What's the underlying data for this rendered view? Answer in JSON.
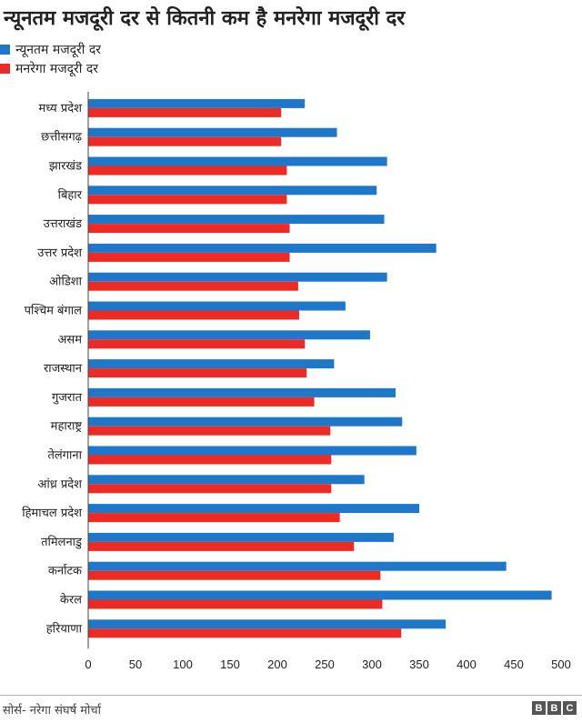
{
  "header": {
    "title": "न्यूनतम मजदूरी दर से कितनी कम है मनरेगा मजदूरी दर"
  },
  "footer": {
    "source": "सोर्स- नरेगा संघर्ष मोर्चा",
    "logo_letters": [
      "B",
      "B",
      "C"
    ]
  },
  "colors": {
    "minimum_wage": "#1f77c9",
    "mnrega_wage": "#ee2a24"
  },
  "chart_data": {
    "type": "bar",
    "orientation": "horizontal",
    "categories": [
      "मध्य प्रदेश",
      "छत्तीसगढ़",
      "झारखंड",
      "बिहार",
      "उत्तराखंड",
      "उत्तर प्रदेश",
      "ओडिशा",
      "पश्चिम बंगाल",
      "असम",
      "राजस्थान",
      "गुजरात",
      "महाराष्ट्र",
      "तेलंगाना",
      "आंध्र प्रदेश",
      "हिमाचल प्रदेश",
      "तमिलनाडु",
      "कर्नाटक",
      "केरल",
      "हरियाणा"
    ],
    "series": [
      {
        "name": "न्यूनतम मजदूरी दर",
        "values": [
          229,
          263,
          316,
          305,
          313,
          368,
          316,
          272,
          298,
          260,
          325,
          332,
          347,
          292,
          350,
          323,
          442,
          490,
          378
        ]
      },
      {
        "name": "मनरेगा मजदूरी दर",
        "values": [
          204,
          204,
          210,
          210,
          213,
          213,
          222,
          223,
          229,
          231,
          239,
          256,
          257,
          257,
          266,
          281,
          309,
          311,
          331
        ]
      }
    ],
    "xlim": [
      0,
      500
    ],
    "xticks": [
      0,
      50,
      100,
      150,
      200,
      250,
      300,
      350,
      400,
      450,
      500
    ],
    "legend": "top-left",
    "grid": false
  }
}
